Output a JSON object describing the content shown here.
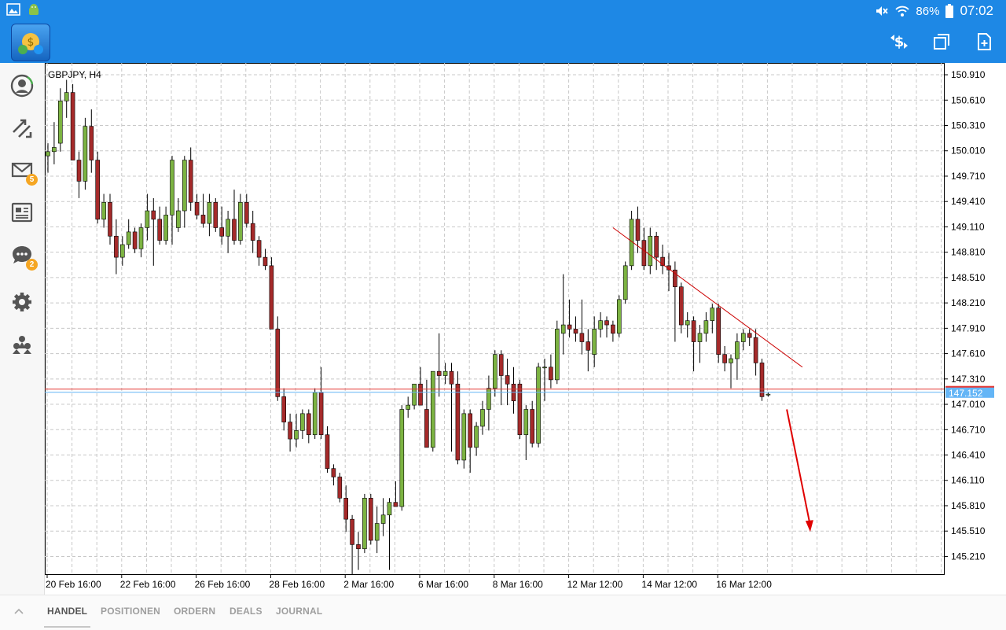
{
  "status_bar": {
    "battery": "86%",
    "time": "07:02"
  },
  "sidebar": {
    "items": [
      {
        "icon": "account-icon"
      },
      {
        "icon": "trade-icon"
      },
      {
        "icon": "mail-icon",
        "badge": "5"
      },
      {
        "icon": "news-icon"
      },
      {
        "icon": "chat-icon",
        "badge": "2"
      },
      {
        "icon": "settings-icon"
      },
      {
        "icon": "community-icon"
      }
    ]
  },
  "bottom_tabs": [
    "HANDEL",
    "POSITIONEN",
    "ORDERN",
    "DEALS",
    "JOURNAL"
  ],
  "colors": {
    "accent": "#1e88e5",
    "bull": "#7cb342",
    "bear": "#a52a2a",
    "bid_line": "#e53935",
    "ask_line": "#64b5f6"
  },
  "chart_data": {
    "type": "candlestick",
    "title": "GBPJPY, H4",
    "ylim": [
      145.0,
      151.05
    ],
    "yticks": [
      145.21,
      145.51,
      145.81,
      146.11,
      146.41,
      146.71,
      147.01,
      147.31,
      147.61,
      147.91,
      148.21,
      148.51,
      148.81,
      149.11,
      149.41,
      149.71,
      150.01,
      150.31,
      150.61,
      150.91
    ],
    "ytick_labels": [
      "145.210",
      "145.510",
      "145.810",
      "146.110",
      "146.410",
      "146.710",
      "147.010",
      "147.310",
      "147.610",
      "147.910",
      "148.210",
      "148.510",
      "148.810",
      "149.110",
      "149.410",
      "149.710",
      "150.010",
      "150.310",
      "150.610",
      "150.910"
    ],
    "xtick_labels": [
      "20 Feb 16:00",
      "22 Feb 16:00",
      "26 Feb 16:00",
      "28 Feb 16:00",
      "2 Mar 16:00",
      "6 Mar 16:00",
      "8 Mar 16:00",
      "12 Mar 12:00",
      "14 Mar 12:00",
      "16 Mar 12:00"
    ],
    "xtick_candle_index": [
      0,
      12,
      24,
      36,
      48,
      60,
      72,
      84,
      96,
      108
    ],
    "current_price_label": "147.152",
    "bid_price": 147.19,
    "ask_price": 147.152,
    "candles": [
      {
        "o": 149.95,
        "h": 150.1,
        "l": 149.75,
        "c": 150.0
      },
      {
        "o": 150.0,
        "h": 150.35,
        "l": 149.85,
        "c": 150.05
      },
      {
        "o": 150.1,
        "h": 150.75,
        "l": 150.0,
        "c": 150.6
      },
      {
        "o": 150.6,
        "h": 150.85,
        "l": 150.4,
        "c": 150.7
      },
      {
        "o": 150.7,
        "h": 150.8,
        "l": 149.9,
        "c": 149.9
      },
      {
        "o": 149.9,
        "h": 150.0,
        "l": 149.45,
        "c": 149.65
      },
      {
        "o": 149.65,
        "h": 150.4,
        "l": 149.55,
        "c": 150.3
      },
      {
        "o": 150.3,
        "h": 150.5,
        "l": 149.75,
        "c": 149.9
      },
      {
        "o": 149.9,
        "h": 150.0,
        "l": 149.15,
        "c": 149.2
      },
      {
        "o": 149.2,
        "h": 149.5,
        "l": 149.1,
        "c": 149.4
      },
      {
        "o": 149.4,
        "h": 149.5,
        "l": 148.9,
        "c": 149.0
      },
      {
        "o": 149.0,
        "h": 149.2,
        "l": 148.55,
        "c": 148.75
      },
      {
        "o": 148.75,
        "h": 149.0,
        "l": 148.65,
        "c": 148.9
      },
      {
        "o": 148.9,
        "h": 149.2,
        "l": 148.85,
        "c": 149.05
      },
      {
        "o": 149.05,
        "h": 149.1,
        "l": 148.8,
        "c": 148.85
      },
      {
        "o": 148.85,
        "h": 149.15,
        "l": 148.75,
        "c": 149.1
      },
      {
        "o": 149.1,
        "h": 149.5,
        "l": 148.95,
        "c": 149.3
      },
      {
        "o": 149.3,
        "h": 149.45,
        "l": 148.65,
        "c": 149.2
      },
      {
        "o": 149.2,
        "h": 149.35,
        "l": 148.9,
        "c": 148.95
      },
      {
        "o": 148.95,
        "h": 149.35,
        "l": 148.9,
        "c": 149.25
      },
      {
        "o": 149.25,
        "h": 149.95,
        "l": 148.9,
        "c": 149.9
      },
      {
        "o": 149.1,
        "h": 149.45,
        "l": 149.05,
        "c": 149.3
      },
      {
        "o": 149.3,
        "h": 149.95,
        "l": 149.1,
        "c": 149.9
      },
      {
        "o": 149.9,
        "h": 150.05,
        "l": 149.3,
        "c": 149.4
      },
      {
        "o": 149.4,
        "h": 149.5,
        "l": 149.2,
        "c": 149.25
      },
      {
        "o": 149.25,
        "h": 149.5,
        "l": 149.1,
        "c": 149.15
      },
      {
        "o": 149.15,
        "h": 149.5,
        "l": 149.0,
        "c": 149.4
      },
      {
        "o": 149.4,
        "h": 149.45,
        "l": 149.05,
        "c": 149.1
      },
      {
        "o": 149.1,
        "h": 149.35,
        "l": 148.9,
        "c": 149.0
      },
      {
        "o": 149.0,
        "h": 149.3,
        "l": 148.8,
        "c": 149.2
      },
      {
        "o": 149.2,
        "h": 149.55,
        "l": 148.9,
        "c": 148.95
      },
      {
        "o": 148.95,
        "h": 149.5,
        "l": 148.9,
        "c": 149.4
      },
      {
        "o": 149.4,
        "h": 149.5,
        "l": 149.1,
        "c": 149.15
      },
      {
        "o": 149.15,
        "h": 149.3,
        "l": 148.8,
        "c": 148.95
      },
      {
        "o": 148.95,
        "h": 149.0,
        "l": 148.65,
        "c": 148.75
      },
      {
        "o": 148.75,
        "h": 148.85,
        "l": 148.6,
        "c": 148.65
      },
      {
        "o": 148.65,
        "h": 148.75,
        "l": 147.9,
        "c": 147.9
      },
      {
        "o": 147.9,
        "h": 148.05,
        "l": 147.05,
        "c": 147.1
      },
      {
        "o": 147.1,
        "h": 147.2,
        "l": 146.7,
        "c": 146.8
      },
      {
        "o": 146.8,
        "h": 146.9,
        "l": 146.45,
        "c": 146.6
      },
      {
        "o": 146.6,
        "h": 146.9,
        "l": 146.5,
        "c": 146.7
      },
      {
        "o": 146.7,
        "h": 146.95,
        "l": 146.6,
        "c": 146.9
      },
      {
        "o": 146.9,
        "h": 146.95,
        "l": 146.55,
        "c": 146.65
      },
      {
        "o": 146.65,
        "h": 147.2,
        "l": 146.6,
        "c": 147.15
      },
      {
        "o": 147.15,
        "h": 147.45,
        "l": 146.6,
        "c": 146.65
      },
      {
        "o": 146.65,
        "h": 146.75,
        "l": 146.2,
        "c": 146.25
      },
      {
        "o": 146.25,
        "h": 146.3,
        "l": 146.05,
        "c": 146.15
      },
      {
        "o": 146.15,
        "h": 146.2,
        "l": 145.85,
        "c": 145.9
      },
      {
        "o": 145.9,
        "h": 146.05,
        "l": 145.5,
        "c": 145.65
      },
      {
        "o": 145.65,
        "h": 145.7,
        "l": 145.0,
        "c": 145.35
      },
      {
        "o": 145.35,
        "h": 145.5,
        "l": 145.05,
        "c": 145.3
      },
      {
        "o": 145.3,
        "h": 145.95,
        "l": 145.25,
        "c": 145.9
      },
      {
        "o": 145.9,
        "h": 145.95,
        "l": 145.35,
        "c": 145.4
      },
      {
        "o": 145.4,
        "h": 145.8,
        "l": 145.25,
        "c": 145.6
      },
      {
        "o": 145.6,
        "h": 145.9,
        "l": 145.45,
        "c": 145.7
      },
      {
        "o": 145.7,
        "h": 145.9,
        "l": 145.05,
        "c": 145.85
      },
      {
        "o": 145.85,
        "h": 146.1,
        "l": 145.8,
        "c": 145.8
      },
      {
        "o": 145.8,
        "h": 147.0,
        "l": 145.75,
        "c": 146.95
      },
      {
        "o": 146.95,
        "h": 147.1,
        "l": 146.85,
        "c": 147.0
      },
      {
        "o": 147.0,
        "h": 147.25,
        "l": 146.95,
        "c": 147.25
      },
      {
        "o": 147.25,
        "h": 147.45,
        "l": 147.0,
        "c": 147.0
      },
      {
        "o": 146.95,
        "h": 147.3,
        "l": 146.5,
        "c": 146.5
      },
      {
        "o": 146.5,
        "h": 147.4,
        "l": 146.45,
        "c": 147.4
      },
      {
        "o": 147.4,
        "h": 147.85,
        "l": 147.1,
        "c": 147.35
      },
      {
        "o": 147.35,
        "h": 147.5,
        "l": 147.25,
        "c": 147.4
      },
      {
        "o": 147.4,
        "h": 147.5,
        "l": 146.45,
        "c": 147.25
      },
      {
        "o": 147.25,
        "h": 147.4,
        "l": 146.3,
        "c": 146.35
      },
      {
        "o": 146.35,
        "h": 146.95,
        "l": 146.25,
        "c": 146.9
      },
      {
        "o": 146.9,
        "h": 146.95,
        "l": 146.2,
        "c": 146.5
      },
      {
        "o": 146.5,
        "h": 146.8,
        "l": 146.4,
        "c": 146.75
      },
      {
        "o": 146.75,
        "h": 147.05,
        "l": 146.65,
        "c": 146.95
      },
      {
        "o": 146.95,
        "h": 147.35,
        "l": 146.7,
        "c": 147.2
      },
      {
        "o": 147.2,
        "h": 147.65,
        "l": 147.1,
        "c": 147.6
      },
      {
        "o": 147.6,
        "h": 147.65,
        "l": 147.0,
        "c": 147.35
      },
      {
        "o": 147.35,
        "h": 147.55,
        "l": 147.0,
        "c": 147.25
      },
      {
        "o": 147.25,
        "h": 147.45,
        "l": 146.9,
        "c": 147.05
      },
      {
        "o": 147.25,
        "h": 147.3,
        "l": 146.6,
        "c": 146.65
      },
      {
        "o": 146.65,
        "h": 147.0,
        "l": 146.35,
        "c": 146.95
      },
      {
        "o": 146.95,
        "h": 147.05,
        "l": 146.5,
        "c": 146.55
      },
      {
        "o": 146.55,
        "h": 147.5,
        "l": 146.5,
        "c": 147.45
      },
      {
        "o": 147.45,
        "h": 147.55,
        "l": 147.05,
        "c": 147.45
      },
      {
        "o": 147.45,
        "h": 147.6,
        "l": 147.2,
        "c": 147.3
      },
      {
        "o": 147.3,
        "h": 148.0,
        "l": 147.25,
        "c": 147.9
      },
      {
        "o": 147.85,
        "h": 148.55,
        "l": 147.6,
        "c": 147.95
      },
      {
        "o": 147.95,
        "h": 148.25,
        "l": 147.8,
        "c": 147.9
      },
      {
        "o": 147.9,
        "h": 148.05,
        "l": 147.75,
        "c": 147.85
      },
      {
        "o": 147.85,
        "h": 148.25,
        "l": 147.6,
        "c": 147.75
      },
      {
        "o": 147.75,
        "h": 147.9,
        "l": 147.4,
        "c": 147.65
      },
      {
        "o": 147.6,
        "h": 148.05,
        "l": 147.45,
        "c": 147.9
      },
      {
        "o": 147.9,
        "h": 148.1,
        "l": 147.8,
        "c": 148.0
      },
      {
        "o": 148.0,
        "h": 148.05,
        "l": 147.8,
        "c": 147.95
      },
      {
        "o": 147.95,
        "h": 148.0,
        "l": 147.75,
        "c": 147.85
      },
      {
        "o": 147.85,
        "h": 148.3,
        "l": 147.8,
        "c": 148.25
      },
      {
        "o": 148.25,
        "h": 148.7,
        "l": 148.2,
        "c": 148.65
      },
      {
        "o": 148.65,
        "h": 149.3,
        "l": 148.6,
        "c": 149.2
      },
      {
        "o": 149.2,
        "h": 149.35,
        "l": 148.8,
        "c": 148.95
      },
      {
        "o": 148.95,
        "h": 149.1,
        "l": 148.6,
        "c": 148.65
      },
      {
        "o": 148.65,
        "h": 149.1,
        "l": 148.55,
        "c": 149.0
      },
      {
        "o": 149.0,
        "h": 149.05,
        "l": 148.6,
        "c": 148.75
      },
      {
        "o": 148.75,
        "h": 148.9,
        "l": 148.55,
        "c": 148.65
      },
      {
        "o": 148.65,
        "h": 148.8,
        "l": 148.35,
        "c": 148.6
      },
      {
        "o": 148.6,
        "h": 148.7,
        "l": 147.75,
        "c": 148.4
      },
      {
        "o": 148.4,
        "h": 148.45,
        "l": 147.85,
        "c": 147.95
      },
      {
        "o": 147.95,
        "h": 148.1,
        "l": 147.8,
        "c": 148.0
      },
      {
        "o": 148.0,
        "h": 148.05,
        "l": 147.4,
        "c": 147.75
      },
      {
        "o": 147.75,
        "h": 147.95,
        "l": 147.5,
        "c": 147.85
      },
      {
        "o": 147.85,
        "h": 148.1,
        "l": 147.75,
        "c": 148.0
      },
      {
        "o": 148.0,
        "h": 148.2,
        "l": 147.85,
        "c": 148.15
      },
      {
        "o": 148.15,
        "h": 148.2,
        "l": 147.5,
        "c": 147.6
      },
      {
        "o": 147.6,
        "h": 147.7,
        "l": 147.4,
        "c": 147.5
      },
      {
        "o": 147.5,
        "h": 147.6,
        "l": 147.2,
        "c": 147.55
      },
      {
        "o": 147.55,
        "h": 147.85,
        "l": 147.3,
        "c": 147.75
      },
      {
        "o": 147.75,
        "h": 147.9,
        "l": 147.65,
        "c": 147.85
      },
      {
        "o": 147.85,
        "h": 147.9,
        "l": 147.7,
        "c": 147.8
      },
      {
        "o": 147.8,
        "h": 147.9,
        "l": 147.35,
        "c": 147.5
      },
      {
        "o": 147.5,
        "h": 147.55,
        "l": 147.05,
        "c": 147.1
      },
      {
        "o": 147.12,
        "h": 147.15,
        "l": 147.1,
        "c": 147.13
      }
    ],
    "trendline": {
      "start": {
        "i": 91,
        "price": 149.1
      },
      "end": {
        "i": 120,
        "price": 147.45
      }
    },
    "arrow": {
      "start": {
        "i": 119,
        "price": 146.95
      },
      "end": {
        "i": 121,
        "price": 145.5
      }
    }
  }
}
